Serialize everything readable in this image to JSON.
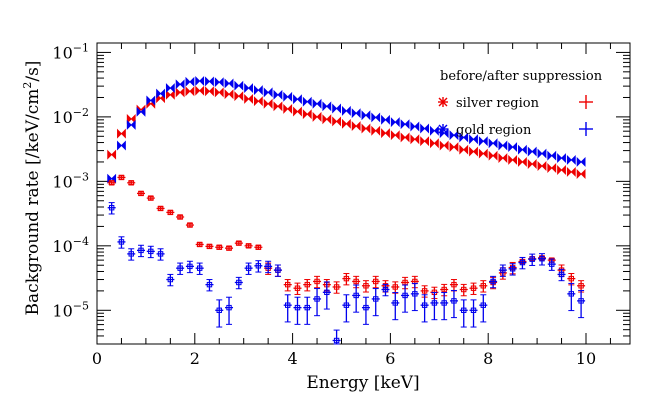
{
  "chart_data": {
    "type": "scatter",
    "xlabel": "Energy [keV]",
    "ylabel_prefix": "Background rate [/keV/cm",
    "ylabel_sup": "2",
    "ylabel_suffix": "/s]",
    "xlim": [
      0,
      10.9
    ],
    "ylim": [
      3e-06,
      0.14
    ],
    "yscale": "log",
    "x_ticks": [
      0,
      2,
      4,
      6,
      8,
      10
    ],
    "x_tick_labels": [
      "0",
      "2",
      "4",
      "6",
      "8",
      "10"
    ],
    "y_ticks": [
      1e-05,
      0.0001,
      0.001,
      0.01,
      0.1
    ],
    "y_tick_labels": [
      {
        "base": "10",
        "exp": "−5"
      },
      {
        "base": "10",
        "exp": "−4"
      },
      {
        "base": "10",
        "exp": "−3"
      },
      {
        "base": "10",
        "exp": "−2"
      },
      {
        "base": "10",
        "exp": "−1"
      }
    ],
    "legend": {
      "title": "before/after suppression",
      "entries": [
        {
          "label": "silver region",
          "color": "#ee0000"
        },
        {
          "label": "gold region",
          "color": "#0000ee"
        }
      ]
    },
    "x": [
      0.3,
      0.5,
      0.7,
      0.9,
      1.1,
      1.3,
      1.5,
      1.7,
      1.9,
      2.1,
      2.3,
      2.5,
      2.7,
      2.9,
      3.1,
      3.3,
      3.5,
      3.7,
      3.9,
      4.1,
      4.3,
      4.5,
      4.7,
      4.9,
      5.1,
      5.3,
      5.5,
      5.7,
      5.9,
      6.1,
      6.3,
      6.5,
      6.7,
      6.9,
      7.1,
      7.3,
      7.5,
      7.7,
      7.9,
      8.1,
      8.3,
      8.5,
      8.7,
      8.9,
      9.1,
      9.3,
      9.5,
      9.7,
      9.9
    ],
    "series": [
      {
        "name": "silver region (before)",
        "color": "#ee0000",
        "values": [
          0.0026,
          0.0055,
          0.0093,
          0.013,
          0.016,
          0.0195,
          0.022,
          0.024,
          0.025,
          0.0255,
          0.025,
          0.024,
          0.0225,
          0.021,
          0.019,
          0.0175,
          0.016,
          0.0146,
          0.0133,
          0.0121,
          0.011,
          0.01,
          0.0092,
          0.0085,
          0.0078,
          0.0072,
          0.0066,
          0.0061,
          0.0056,
          0.0052,
          0.0048,
          0.0045,
          0.0042,
          0.0039,
          0.0036,
          0.0034,
          0.0031,
          0.0029,
          0.0027,
          0.0025,
          0.0023,
          0.00215,
          0.002,
          0.00186,
          0.00173,
          0.00161,
          0.0015,
          0.0014,
          0.0013
        ]
      },
      {
        "name": "gold region (before)",
        "color": "#0000ee",
        "values": [
          0.0011,
          0.0036,
          0.0075,
          0.012,
          0.018,
          0.023,
          0.028,
          0.032,
          0.035,
          0.036,
          0.0355,
          0.0345,
          0.033,
          0.0305,
          0.028,
          0.026,
          0.024,
          0.022,
          0.0205,
          0.0188,
          0.0172,
          0.016,
          0.0146,
          0.0135,
          0.0124,
          0.0114,
          0.0106,
          0.0098,
          0.009,
          0.0083,
          0.0077,
          0.0071,
          0.0066,
          0.0061,
          0.0056,
          0.0052,
          0.0048,
          0.0045,
          0.0042,
          0.0039,
          0.0036,
          0.0034,
          0.0031,
          0.0029,
          0.0027,
          0.0025,
          0.0023,
          0.00215,
          0.002
        ]
      },
      {
        "name": "silver region (after)",
        "color": "#ee0000",
        "values": [
          0.00095,
          0.00115,
          0.00095,
          0.00065,
          0.00055,
          0.00038,
          0.00033,
          0.00028,
          0.00021,
          0.000105,
          9.8e-05,
          9.5e-05,
          9.2e-05,
          0.00011,
          0.0001,
          9.5e-05,
          4.5e-05,
          4.2e-05,
          2.5e-05,
          2.2e-05,
          2.5e-05,
          2.8e-05,
          2.5e-05,
          2.3e-05,
          3.1e-05,
          2.8e-05,
          2.4e-05,
          2.8e-05,
          2.4e-05,
          2.3e-05,
          2.7e-05,
          2.8e-05,
          2e-05,
          1.9e-05,
          2.1e-05,
          2.5e-05,
          2.1e-05,
          2.2e-05,
          2.4e-05,
          2.7e-05,
          3.8e-05,
          4.6e-05,
          5.7e-05,
          6.3e-05,
          6.5e-05,
          6e-05,
          4.2e-05,
          3.1e-05,
          2.4e-05
        ]
      },
      {
        "name": "gold region (after)",
        "color": "#0000ee",
        "values": [
          0.00039,
          0.000115,
          7.5e-05,
          8.5e-05,
          8.2e-05,
          7.5e-05,
          3e-05,
          4.5e-05,
          4.8e-05,
          4.5e-05,
          2.5e-05,
          1e-05,
          1.1e-05,
          2.7e-05,
          4.5e-05,
          4.9e-05,
          4.8e-05,
          4.2e-05,
          1.2e-05,
          1.1e-05,
          1.1e-05,
          1.5e-05,
          1.9e-05,
          3.4e-06,
          1.2e-05,
          1.7e-05,
          1.1e-05,
          1.5e-05,
          2.1e-05,
          1.3e-05,
          1.7e-05,
          1.8e-05,
          1.2e-05,
          1.3e-05,
          1.3e-05,
          1.4e-05,
          1e-05,
          1e-05,
          1.2e-05,
          2.8e-05,
          4.2e-05,
          4.4e-05,
          5.5e-05,
          6.2e-05,
          6.3e-05,
          5.2e-05,
          3.6e-05,
          1.8e-05,
          1.4e-05
        ]
      }
    ]
  }
}
